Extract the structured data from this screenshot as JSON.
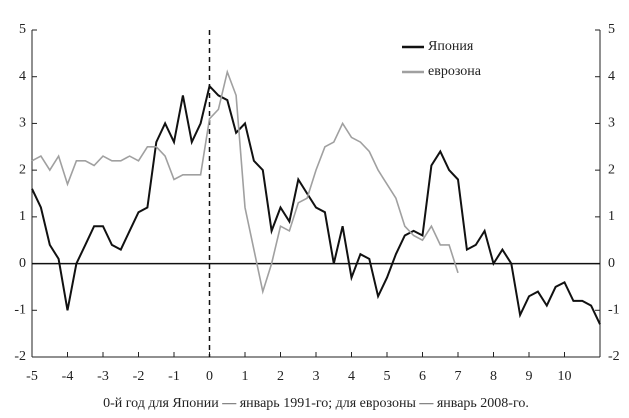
{
  "chart_data": {
    "type": "line",
    "xlabel": "0-й год для Японии — январь 1991-го; для еврозоны — январь 2008-го.",
    "x": [
      -5,
      -4.75,
      -4.5,
      -4.25,
      -4,
      -3.75,
      -3.5,
      -3.25,
      -3,
      -2.75,
      -2.5,
      -2.25,
      -2,
      -1.75,
      -1.5,
      -1.25,
      -1,
      -0.75,
      -0.5,
      -0.25,
      0,
      0.25,
      0.5,
      0.75,
      1,
      1.25,
      1.5,
      1.75,
      2,
      2.25,
      2.5,
      2.75,
      3,
      3.25,
      3.5,
      3.75,
      4,
      4.25,
      4.5,
      4.75,
      5,
      5.25,
      5.5,
      5.75,
      6,
      6.25,
      6.5,
      6.75,
      7,
      7.25,
      7.5,
      7.75,
      8,
      8.25,
      8.5,
      8.75,
      9,
      9.25,
      9.5,
      9.75,
      10,
      10.25,
      10.5,
      10.75,
      11
    ],
    "series": [
      {
        "name": "Япония",
        "color": "#111111",
        "values": [
          1.6,
          1.2,
          0.4,
          0.1,
          -1.0,
          0.0,
          0.4,
          0.8,
          0.8,
          0.4,
          0.3,
          0.7,
          1.1,
          1.2,
          2.6,
          3.0,
          2.6,
          3.6,
          2.6,
          3.0,
          3.8,
          3.6,
          3.5,
          2.8,
          3.0,
          2.2,
          2.0,
          0.7,
          1.2,
          0.9,
          1.8,
          1.5,
          1.2,
          1.1,
          0.0,
          0.8,
          -0.3,
          0.2,
          0.1,
          -0.7,
          -0.3,
          0.2,
          0.6,
          0.7,
          0.6,
          2.1,
          2.4,
          2.0,
          1.8,
          0.3,
          0.4,
          0.7,
          0.0,
          0.3,
          0.0,
          -1.1,
          -0.7,
          -0.6,
          -0.9,
          -0.5,
          -0.4,
          -0.8,
          -0.8,
          -0.9,
          -1.3
        ]
      },
      {
        "name": "еврозона",
        "color": "#a0a0a0",
        "values": [
          2.2,
          2.3,
          2.0,
          2.3,
          1.7,
          2.2,
          2.2,
          2.1,
          2.3,
          2.2,
          2.2,
          2.3,
          2.2,
          2.5,
          2.5,
          2.3,
          1.8,
          1.9,
          1.9,
          1.9,
          3.1,
          3.3,
          4.1,
          3.6,
          1.2,
          0.3,
          -0.6,
          0.0,
          0.8,
          0.7,
          1.3,
          1.4,
          2.0,
          2.5,
          2.6,
          3.0,
          2.7,
          2.6,
          2.4,
          2.0,
          1.7,
          1.4,
          0.8,
          0.6,
          0.5,
          0.8,
          0.4,
          0.4,
          -0.2,
          null,
          null,
          null,
          null,
          null,
          null,
          null,
          null,
          null,
          null,
          null,
          null,
          null,
          null,
          null,
          null
        ]
      }
    ],
    "xlim": [
      -5,
      11
    ],
    "xticks": [
      -5,
      -4,
      -3,
      -2,
      -1,
      0,
      1,
      2,
      3,
      4,
      5,
      6,
      7,
      8,
      9,
      10
    ],
    "ylim": [
      -2,
      5
    ],
    "yticks": [
      -2,
      -1,
      0,
      1,
      2,
      3,
      4,
      5
    ]
  }
}
